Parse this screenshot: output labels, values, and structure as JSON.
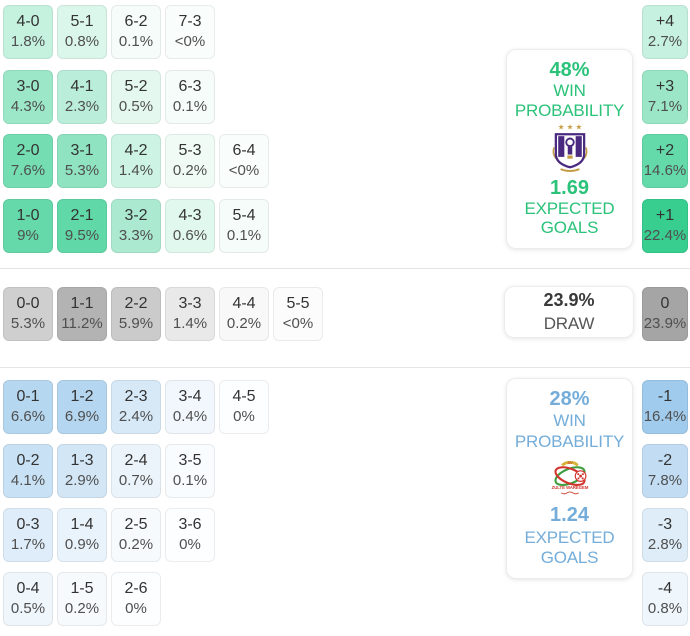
{
  "chart_data": {
    "type": "heatmap",
    "home": {
      "team": "Anderlecht",
      "win_probability": "48%",
      "win_label": "WIN",
      "prob_label": "PROBABILITY",
      "expected_goals": "1.69",
      "xg_label1": "EXPECTED",
      "xg_label2": "GOALS",
      "scores": [
        [
          {
            "score": "4-0",
            "pct": "1.8%"
          },
          {
            "score": "5-1",
            "pct": "0.8%"
          },
          {
            "score": "6-2",
            "pct": "0.1%"
          },
          {
            "score": "7-3",
            "pct": "<0%"
          }
        ],
        [
          {
            "score": "3-0",
            "pct": "4.3%"
          },
          {
            "score": "4-1",
            "pct": "2.3%"
          },
          {
            "score": "5-2",
            "pct": "0.5%"
          },
          {
            "score": "6-3",
            "pct": "0.1%"
          }
        ],
        [
          {
            "score": "2-0",
            "pct": "7.6%"
          },
          {
            "score": "3-1",
            "pct": "5.3%"
          },
          {
            "score": "4-2",
            "pct": "1.4%"
          },
          {
            "score": "5-3",
            "pct": "0.2%"
          },
          {
            "score": "6-4",
            "pct": "<0%"
          }
        ],
        [
          {
            "score": "1-0",
            "pct": "9%"
          },
          {
            "score": "2-1",
            "pct": "9.5%"
          },
          {
            "score": "3-2",
            "pct": "3.3%"
          },
          {
            "score": "4-3",
            "pct": "0.6%"
          },
          {
            "score": "5-4",
            "pct": "0.1%"
          }
        ]
      ],
      "goal_diff": [
        {
          "label": "+4",
          "pct": "2.7%"
        },
        {
          "label": "+3",
          "pct": "7.1%"
        },
        {
          "label": "+2",
          "pct": "14.6%"
        },
        {
          "label": "+1",
          "pct": "22.4%"
        }
      ]
    },
    "draw": {
      "probability": "23.9%",
      "label": "DRAW",
      "scores": [
        [
          {
            "score": "0-0",
            "pct": "5.3%"
          },
          {
            "score": "1-1",
            "pct": "11.2%"
          },
          {
            "score": "2-2",
            "pct": "5.9%"
          },
          {
            "score": "3-3",
            "pct": "1.4%"
          },
          {
            "score": "4-4",
            "pct": "0.2%"
          },
          {
            "score": "5-5",
            "pct": "<0%"
          }
        ]
      ],
      "goal_diff": [
        {
          "label": "0",
          "pct": "23.9%"
        }
      ]
    },
    "away": {
      "team": "Zulte Waregem",
      "win_probability": "28%",
      "win_label": "WIN",
      "prob_label": "PROBABILITY",
      "expected_goals": "1.24",
      "xg_label1": "EXPECTED",
      "xg_label2": "GOALS",
      "scores": [
        [
          {
            "score": "0-1",
            "pct": "6.6%"
          },
          {
            "score": "1-2",
            "pct": "6.9%"
          },
          {
            "score": "2-3",
            "pct": "2.4%"
          },
          {
            "score": "3-4",
            "pct": "0.4%"
          },
          {
            "score": "4-5",
            "pct": "0%"
          }
        ],
        [
          {
            "score": "0-2",
            "pct": "4.1%"
          },
          {
            "score": "1-3",
            "pct": "2.9%"
          },
          {
            "score": "2-4",
            "pct": "0.7%"
          },
          {
            "score": "3-5",
            "pct": "0.1%"
          }
        ],
        [
          {
            "score": "0-3",
            "pct": "1.7%"
          },
          {
            "score": "1-4",
            "pct": "0.9%"
          },
          {
            "score": "2-5",
            "pct": "0.2%"
          },
          {
            "score": "3-6",
            "pct": "0%"
          }
        ],
        [
          {
            "score": "0-4",
            "pct": "0.5%"
          },
          {
            "score": "1-5",
            "pct": "0.2%"
          },
          {
            "score": "2-6",
            "pct": "0%"
          }
        ]
      ],
      "goal_diff": [
        {
          "label": "-1",
          "pct": "16.4%"
        },
        {
          "label": "-2",
          "pct": "7.8%"
        },
        {
          "label": "-3",
          "pct": "2.8%"
        },
        {
          "label": "-4",
          "pct": "0.8%"
        }
      ]
    }
  },
  "colors": {
    "home_cell_base": "#24c986",
    "draw_cell_base": "#a0a0a0",
    "away_cell_base": "#81bae6",
    "home_accent": "#2bc279",
    "away_accent": "#74add9"
  },
  "logos": {
    "anderlecht": {
      "stars": "★ ★ ★"
    },
    "zulte": {
      "top_text": "SV",
      "banner_text": "ZULTE WAREGEM"
    }
  }
}
